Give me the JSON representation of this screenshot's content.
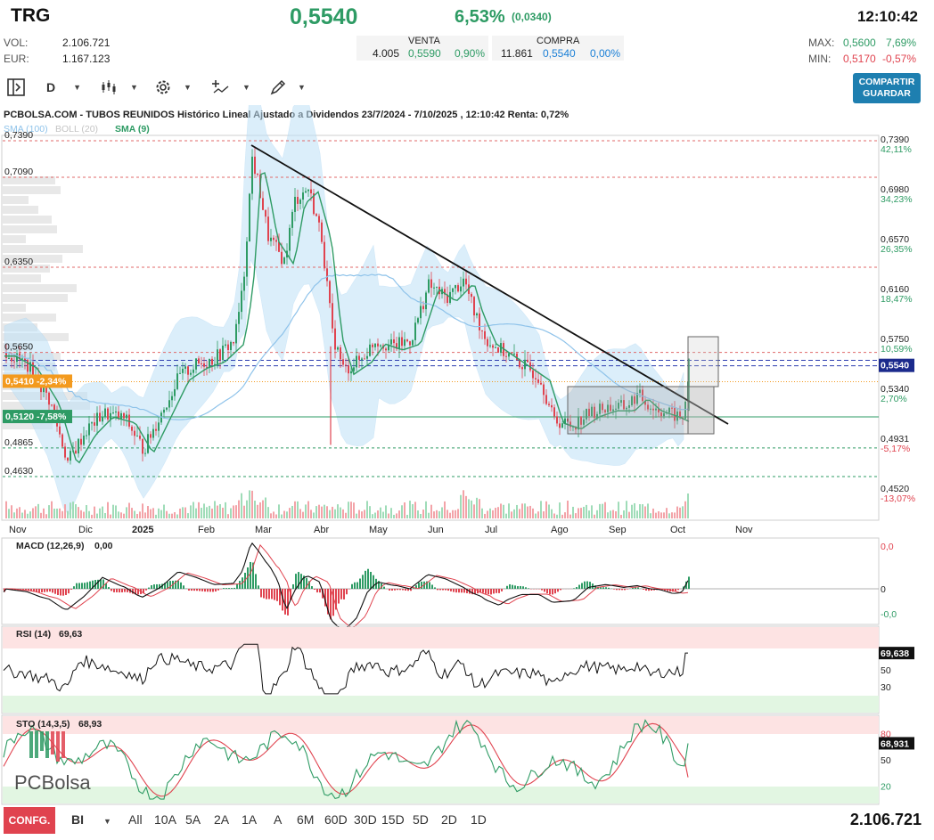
{
  "header": {
    "ticker": "TRG",
    "price": "0,5540",
    "change_pct": "6,53%",
    "change_abs": "(0,0340)",
    "time": "12:10:42",
    "vol_label": "VOL:",
    "vol_value": "2.106.721",
    "eur_label": "EUR:",
    "eur_value": "1.167.123",
    "venta_label": "VENTA",
    "venta_qty": "4.005",
    "venta_price": "0,5590",
    "venta_pct": "0,90%",
    "compra_label": "COMPRA",
    "compra_qty": "11.861",
    "compra_price": "0,5540",
    "compra_pct": "0,00%",
    "max_label": "MAX:",
    "max_value": "0,5600",
    "max_pct": "7,69%",
    "min_label": "MIN:",
    "min_value": "0,5170",
    "min_pct": "-0,57%"
  },
  "toolbar": {
    "period": "D",
    "share_line1": "COMPARTIR",
    "share_line2": "GUARDAR"
  },
  "chart_title": "PCBOLSA.COM - TUBOS REUNIDOS Histórico Lineal Ajustado a Dividendos 23/7/2024 - 7/10/2025 , 12:10:42 Renta: 0,72%",
  "legend": {
    "sma100": "SMA (100)",
    "boll": "BOLL (20)",
    "sma9": "SMA (9)"
  },
  "left_price_labels": [
    "0,7390",
    "0,7090",
    "0,6350",
    "0,5650",
    "0,4865",
    "0,4630"
  ],
  "left_tags": [
    {
      "text": "0,5410  -2,34%",
      "color": "#f39a1e"
    },
    {
      "text": "0,5120  -7,58%",
      "color": "#2e9b64"
    }
  ],
  "right_axis": [
    {
      "price": "0,7390",
      "pct": "42,11%"
    },
    {
      "price": "0,6980",
      "pct": "34,23%"
    },
    {
      "price": "0,6570",
      "pct": "26,35%"
    },
    {
      "price": "0,6160",
      "pct": "18,47%"
    },
    {
      "price": "0,5750",
      "pct": "10,59%"
    },
    {
      "price": "0,5340",
      "pct": "2,70%"
    },
    {
      "price": "0,4931",
      "pct": "-5,17%"
    },
    {
      "price": "0,4520",
      "pct": "-13,07%"
    }
  ],
  "current_price_tag": "0,5540",
  "months": [
    "Nov",
    "Dic",
    "2025",
    "Feb",
    "Mar",
    "Abr",
    "May",
    "Jun",
    "Jul",
    "Ago",
    "Sep",
    "Oct",
    "Nov"
  ],
  "macd": {
    "label": "MACD (12,26,9)",
    "value": "0,00",
    "axis": [
      "0,0",
      "0",
      "-0,0"
    ]
  },
  "rsi": {
    "label": "RSI (14)",
    "value": "69,63",
    "tag": "69,638",
    "axis": [
      "50",
      "30"
    ]
  },
  "sto": {
    "label": "STO (14,3,5)",
    "value": "68,93",
    "tag": "68,931",
    "axis": [
      "80",
      "50",
      "20"
    ]
  },
  "watermark": "PCBolsa",
  "bottom": {
    "config": "CONFG.",
    "mode": "BI",
    "periods": [
      "All",
      "10A",
      "5A",
      "2A",
      "1A",
      "A",
      "6M",
      "60D",
      "30D",
      "15D",
      "5D",
      "2D",
      "1D"
    ],
    "volume": "2.106.721"
  },
  "chart_data": {
    "type": "line",
    "title": "PCBOLSA.COM - TUBOS REUNIDOS Histórico Lineal Ajustado a Dividendos 23/7/2024 - 7/10/2025 , 12:10:42 Renta: 0,72%",
    "x": [
      "Nov",
      "Dic",
      "2025",
      "Feb",
      "Mar",
      "Abr",
      "May",
      "Jun",
      "Jul",
      "Ago",
      "Sep",
      "Oct"
    ],
    "ylim": [
      0.44,
      0.75
    ],
    "series": [
      {
        "name": "",
        "values": [
          0.555,
          0.5,
          0.51,
          0.54,
          0.72,
          0.54,
          0.57,
          0.62,
          0.57,
          0.51,
          0.52,
          0.554
        ]
      }
    ],
    "horizontal_levels": [
      0.739,
      0.709,
      0.635,
      0.565,
      0.541,
      0.512,
      0.4865,
      0.463
    ],
    "current_price": 0.554,
    "color_up": "#2e9b64",
    "color_down": "#e0434f",
    "color_sma9": "#2e9b64",
    "color_boll": "#bfe1f7"
  }
}
